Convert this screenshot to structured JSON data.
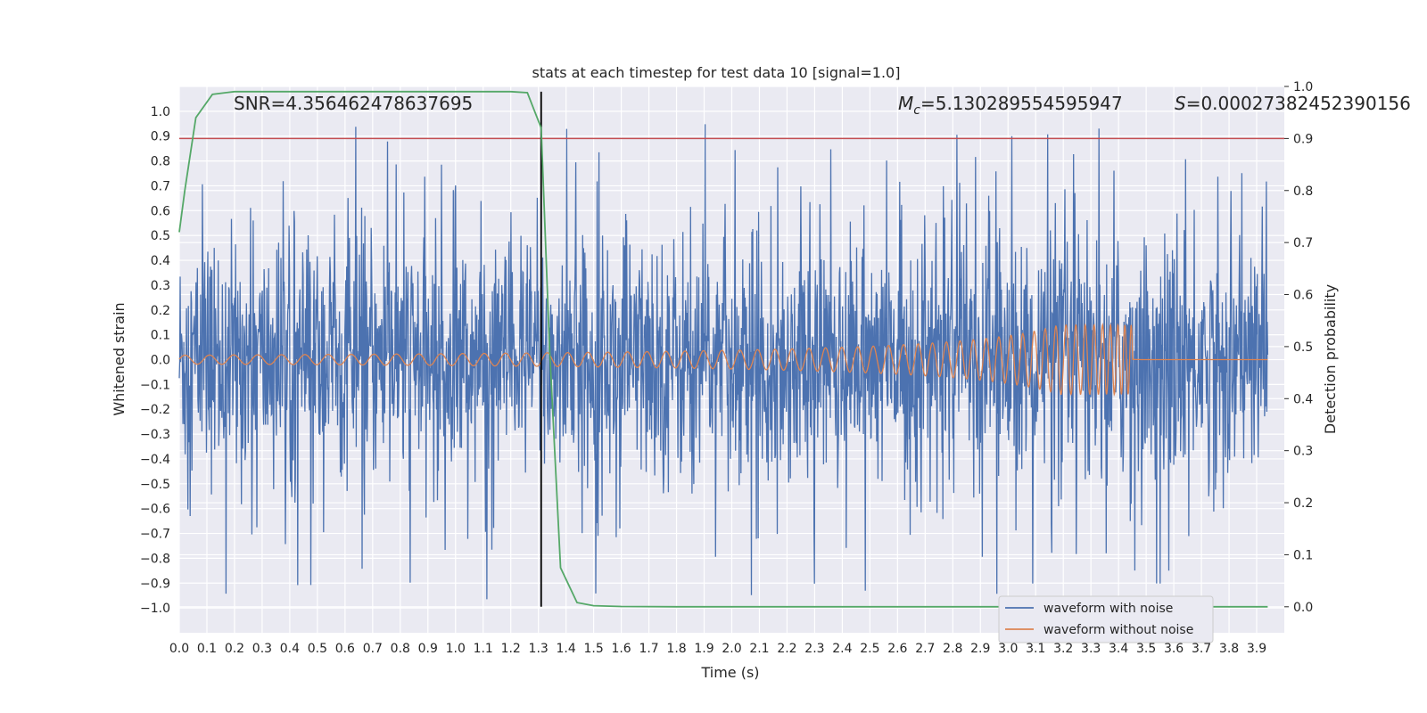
{
  "chart_data": {
    "type": "line",
    "title": "stats at each timestep for test data 10 [signal=1.0]",
    "xlabel": "Time (s)",
    "ylabel": "Whitened strain",
    "y2label": "Detection probability",
    "xlim": [
      0.0,
      4.0
    ],
    "ylim": [
      -1.1,
      1.1
    ],
    "y2lim": [
      -0.05,
      1.0
    ],
    "x_ticks": [
      "0.0",
      "0.1",
      "0.2",
      "0.3",
      "0.4",
      "0.5",
      "0.6",
      "0.7",
      "0.8",
      "0.9",
      "1.0",
      "1.1",
      "1.2",
      "1.3",
      "1.4",
      "1.5",
      "1.6",
      "1.7",
      "1.8",
      "1.9",
      "2.0",
      "2.1",
      "2.2",
      "2.3",
      "2.4",
      "2.5",
      "2.6",
      "2.7",
      "2.8",
      "2.9",
      "3.0",
      "3.1",
      "3.2",
      "3.3",
      "3.4",
      "3.5",
      "3.6",
      "3.7",
      "3.8",
      "3.9"
    ],
    "y_ticks": [
      "1.0",
      "0.9",
      "0.8",
      "0.7",
      "0.6",
      "0.5",
      "0.4",
      "0.3",
      "0.2",
      "0.1",
      "0.0",
      "−0.1",
      "−0.2",
      "−0.3",
      "−0.4",
      "−0.5",
      "−0.6",
      "−0.7",
      "−0.8",
      "−0.9",
      "−1.0"
    ],
    "y2_ticks": [
      "1.0",
      "0.9",
      "0.8",
      "0.7",
      "0.6",
      "0.5",
      "0.4",
      "0.3",
      "0.2",
      "0.1",
      "0.0"
    ],
    "annotations": {
      "snr": "SNR=4.356462478637695",
      "mc_symbol": "M",
      "mc_sub": "c",
      "mc_value": "=5.130289554595947",
      "s_symbol": "S",
      "s_value": "=0.00027382452390156"
    },
    "threshold_line": {
      "axis": "y2",
      "value": 0.9,
      "color": "#c44e52"
    },
    "vertical_marker": {
      "x": 1.31,
      "color": "#000000"
    },
    "series": [
      {
        "name": "waveform with noise",
        "color": "#4c72b0",
        "description": "noisy strain, roughly between -0.97 and 0.98"
      },
      {
        "name": "waveform without noise",
        "color": "#dd8452",
        "description": "chirp, amplitude ~0.02 growing to ~0.13 at merger near 3.45 s, flat after"
      },
      {
        "name": "detection probability",
        "color": "#55a868",
        "axis": "y2",
        "x": [
          0.0,
          0.02,
          0.06,
          0.12,
          0.2,
          0.3,
          0.6,
          1.0,
          1.2,
          1.26,
          1.31,
          1.34,
          1.38,
          1.44,
          1.5,
          1.6,
          1.8,
          2.5,
          3.5,
          3.94
        ],
        "y": [
          0.72,
          0.8,
          0.94,
          0.985,
          0.99,
          0.99,
          0.99,
          0.99,
          0.99,
          0.988,
          0.92,
          0.5,
          0.075,
          0.008,
          0.002,
          0.0005,
          0.0,
          0.0,
          0.0,
          0.0
        ]
      }
    ],
    "legend": {
      "position": "lower-right",
      "entries": [
        {
          "label": "waveform with noise",
          "color": "#4c72b0"
        },
        {
          "label": "waveform without noise",
          "color": "#dd8452"
        }
      ]
    },
    "background": "#eaeaf2",
    "grid": true
  }
}
